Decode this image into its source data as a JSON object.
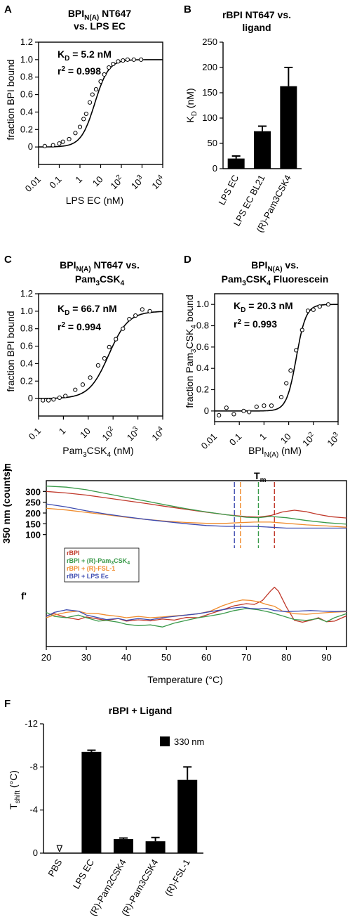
{
  "chart_data": [
    {
      "id": "A",
      "type": "scatter",
      "panel_label": "A",
      "title": "BPI_N(A) NT647 vs. LPS EC",
      "xlabel": "LPS EC (nM)",
      "ylabel": "fraction BPI bound",
      "xscale": "log",
      "xlim": [
        0.01,
        10000
      ],
      "ylim": [
        -0.2,
        1.2
      ],
      "xticklabels": [
        "0.01",
        "0.1",
        "1",
        "10",
        "10^2",
        "10^3",
        "10^4"
      ],
      "yticklabels": [
        "0",
        "0.2",
        "0.4",
        "0.6",
        "0.8",
        "1.0",
        "1.2"
      ],
      "annotations": [
        "K_D = 5.2 nM",
        "r^2 = 0.998"
      ],
      "fit": {
        "kd": 5.2,
        "hill": 1.3
      },
      "points": [
        [
          0.02,
          0.01
        ],
        [
          0.05,
          0.02
        ],
        [
          0.1,
          0.04
        ],
        [
          0.15,
          0.06
        ],
        [
          0.3,
          0.09
        ],
        [
          0.6,
          0.16
        ],
        [
          1,
          0.23
        ],
        [
          1.5,
          0.32
        ],
        [
          2,
          0.38
        ],
        [
          3,
          0.51
        ],
        [
          4,
          0.6
        ],
        [
          6,
          0.66
        ],
        [
          10,
          0.75
        ],
        [
          15,
          0.83
        ],
        [
          25,
          0.91
        ],
        [
          40,
          0.95
        ],
        [
          70,
          0.98
        ],
        [
          120,
          0.99
        ],
        [
          200,
          1.0
        ],
        [
          400,
          1.0
        ],
        [
          900,
          1.0
        ]
      ]
    },
    {
      "id": "B",
      "type": "bar",
      "panel_label": "B",
      "title": "rBPI NT647 vs. ligand",
      "ylabel": "K_D (nM)",
      "ylim": [
        0,
        250
      ],
      "yticklabels": [
        "0",
        "50",
        "100",
        "150",
        "200",
        "250"
      ],
      "categories": [
        "LPS EC",
        "LPS EC BL21",
        "(R)-Pam3CSK4"
      ],
      "values": [
        20,
        74,
        163
      ],
      "errors": [
        5,
        10,
        37
      ]
    },
    {
      "id": "C",
      "type": "scatter",
      "panel_label": "C",
      "title": "BPI_N(A) NT647 vs. Pam3CSK4",
      "xlabel": "Pam3CSK4 (nM)",
      "ylabel": "fraction BPI bound",
      "xscale": "log",
      "xlim": [
        0.1,
        10000
      ],
      "ylim": [
        -0.2,
        1.2
      ],
      "xticklabels": [
        "0.1",
        "1",
        "10",
        "10^2",
        "10^3",
        "10^4"
      ],
      "yticklabels": [
        "0",
        "0.2",
        "0.4",
        "0.6",
        "0.8",
        "1.0",
        "1.2"
      ],
      "annotations": [
        "K_D = 66.7 nM",
        "r^2 = 0.994"
      ],
      "fit": {
        "kd": 66.7,
        "hill": 1.1
      },
      "points": [
        [
          0.15,
          -0.02
        ],
        [
          0.25,
          -0.02
        ],
        [
          0.4,
          -0.01
        ],
        [
          0.7,
          0.01
        ],
        [
          1.2,
          0.03
        ],
        [
          3,
          0.1
        ],
        [
          6,
          0.16
        ],
        [
          12,
          0.24
        ],
        [
          25,
          0.38
        ],
        [
          45,
          0.46
        ],
        [
          70,
          0.59
        ],
        [
          130,
          0.68
        ],
        [
          250,
          0.8
        ],
        [
          450,
          0.91
        ],
        [
          800,
          0.95
        ],
        [
          1500,
          1.02
        ],
        [
          3000,
          1.0
        ]
      ]
    },
    {
      "id": "D",
      "type": "scatter",
      "panel_label": "D",
      "title": "BPI_N(A) vs. Pam3CSK4 Fluorescein",
      "xlabel": "BPI_N(A) (nM)",
      "ylabel": "fraction Pam3CSK4 bound",
      "xscale": "log",
      "xlim": [
        0.01,
        1000
      ],
      "ylim": [
        -0.1,
        1.1
      ],
      "xticklabels": [
        "0.01",
        "0.1",
        "1",
        "10",
        "10^2",
        "10^3"
      ],
      "yticklabels": [
        "0",
        "0.2",
        "0.4",
        "0.6",
        "0.8",
        "1.0"
      ],
      "annotations": [
        "K_D = 20.3 nM",
        "r^2 = 0.993"
      ],
      "fit": {
        "kd": 20.3,
        "hill": 2.2
      },
      "points": [
        [
          0.015,
          -0.04
        ],
        [
          0.03,
          0.03
        ],
        [
          0.06,
          -0.03
        ],
        [
          0.15,
          0.0
        ],
        [
          0.25,
          -0.01
        ],
        [
          0.5,
          0.04
        ],
        [
          1,
          0.05
        ],
        [
          2,
          0.05
        ],
        [
          5,
          0.13
        ],
        [
          8,
          0.26
        ],
        [
          12,
          0.38
        ],
        [
          20,
          0.57
        ],
        [
          35,
          0.76
        ],
        [
          60,
          0.94
        ],
        [
          100,
          0.95
        ],
        [
          180,
          0.98
        ],
        [
          400,
          1.0
        ]
      ]
    },
    {
      "id": "E",
      "type": "line",
      "panel_label": "E",
      "xlabel": "Temperature (°C)",
      "ylabel": "350 nm (counts)",
      "lower_ylabel": "f'",
      "tm_label": "Tm",
      "xlim": [
        20,
        95
      ],
      "ylim": [
        50,
        350
      ],
      "xticklabels": [
        "20",
        "30",
        "40",
        "50",
        "60",
        "70",
        "80",
        "90"
      ],
      "yticklabels": [
        "100",
        "150",
        "200",
        "250",
        "300"
      ],
      "tm_values": [
        67,
        68.5,
        73,
        77
      ],
      "series": [
        {
          "name": "rBPI",
          "color": "#c0392b",
          "x": [
            20,
            25,
            30,
            35,
            40,
            45,
            50,
            55,
            60,
            65,
            70,
            73,
            76,
            79,
            82,
            85,
            88,
            91,
            95
          ],
          "y": [
            300,
            293,
            283,
            270,
            257,
            244,
            230,
            217,
            204,
            192,
            183,
            181,
            188,
            205,
            213,
            206,
            193,
            183,
            177
          ]
        },
        {
          "name": "rBPI + (R)-Pam3CSK4",
          "color": "#3a9a4a",
          "x": [
            20,
            25,
            30,
            35,
            40,
            45,
            50,
            55,
            60,
            65,
            70,
            73,
            76,
            80,
            85,
            90,
            95
          ],
          "y": [
            325,
            320,
            308,
            290,
            272,
            255,
            237,
            220,
            205,
            192,
            180,
            178,
            184,
            178,
            165,
            155,
            148
          ]
        },
        {
          "name": "rBPI + (R)-FSL-1",
          "color": "#f08c2e",
          "x": [
            20,
            25,
            30,
            35,
            40,
            45,
            50,
            55,
            60,
            65,
            68,
            72,
            76,
            80,
            85,
            90,
            95
          ],
          "y": [
            222,
            214,
            203,
            192,
            180,
            170,
            162,
            156,
            152,
            152,
            155,
            158,
            158,
            152,
            145,
            140,
            134
          ]
        },
        {
          "name": "rBPI + LPS Ec",
          "color": "#3d4bb0",
          "x": [
            20,
            25,
            30,
            35,
            40,
            45,
            50,
            55,
            60,
            65,
            68,
            72,
            76,
            80,
            85,
            90,
            95
          ],
          "y": [
            242,
            228,
            210,
            195,
            182,
            170,
            160,
            150,
            142,
            138,
            138,
            138,
            134,
            130,
            130,
            130,
            130
          ]
        }
      ],
      "derivative_series": [
        {
          "name": "rBPI",
          "color": "#c0392b",
          "x": [
            20,
            22,
            25,
            28,
            30,
            33,
            35,
            38,
            40,
            43,
            46,
            49,
            52,
            55,
            58,
            61,
            64,
            67,
            70,
            72,
            74,
            76,
            77,
            78,
            80,
            82,
            84,
            86,
            88,
            90,
            92,
            95
          ],
          "y": [
            0.12,
            0.2,
            0.06,
            -0.02,
            0.08,
            0.0,
            -0.05,
            0.02,
            -0.08,
            -0.03,
            -0.07,
            0.0,
            -0.04,
            0.06,
            0.05,
            0.2,
            0.35,
            0.5,
            0.58,
            0.55,
            0.7,
            1.05,
            1.2,
            1.05,
            0.45,
            -0.05,
            -0.12,
            -0.05,
            0.05,
            -0.1,
            -0.08,
            0.12
          ]
        },
        {
          "name": "rBPI + (R)-Pam3CSK4",
          "color": "#3a9a4a",
          "x": [
            20,
            22,
            25,
            28,
            30,
            33,
            35,
            38,
            40,
            43,
            46,
            49,
            52,
            55,
            58,
            61,
            64,
            67,
            70,
            73,
            76,
            79,
            82,
            85,
            88,
            90,
            92,
            95
          ],
          "y": [
            0.25,
            0.1,
            0.05,
            0.15,
            0.05,
            -0.08,
            -0.05,
            -0.12,
            -0.2,
            -0.25,
            -0.22,
            -0.3,
            -0.15,
            -0.05,
            0.05,
            0.12,
            0.2,
            0.32,
            0.4,
            0.35,
            0.25,
            0.12,
            -0.02,
            -0.05,
            0.02,
            -0.1,
            0.05,
            0.2
          ]
        },
        {
          "name": "rBPI + (R)-FSL-1",
          "color": "#f08c2e",
          "x": [
            20,
            22,
            25,
            28,
            30,
            33,
            35,
            38,
            40,
            43,
            46,
            49,
            52,
            55,
            58,
            61,
            64,
            67,
            69,
            71,
            73,
            75,
            77,
            79,
            82,
            85,
            88,
            91,
            95
          ],
          "y": [
            0.05,
            0.15,
            0.25,
            0.3,
            0.22,
            0.2,
            0.15,
            0.1,
            0.05,
            0.1,
            0.05,
            0.08,
            0.12,
            0.15,
            0.2,
            0.3,
            0.5,
            0.65,
            0.72,
            0.7,
            0.65,
            0.55,
            0.48,
            0.3,
            0.2,
            0.18,
            0.22,
            0.25,
            0.28
          ]
        },
        {
          "name": "rBPI + LPS Ec",
          "color": "#3d4bb0",
          "x": [
            20,
            22,
            25,
            28,
            30,
            33,
            35,
            38,
            40,
            43,
            46,
            49,
            52,
            55,
            58,
            61,
            64,
            67,
            69,
            71,
            73,
            75,
            77,
            80,
            83,
            86,
            89,
            92,
            95
          ],
          "y": [
            0.1,
            0.25,
            0.35,
            0.3,
            0.15,
            0.05,
            -0.02,
            0.02,
            -0.05,
            0.02,
            -0.03,
            0.05,
            0.1,
            0.15,
            0.2,
            0.28,
            0.35,
            0.42,
            0.45,
            0.4,
            0.38,
            0.4,
            0.32,
            0.28,
            0.3,
            0.32,
            0.3,
            0.28,
            0.3
          ]
        }
      ]
    },
    {
      "id": "F",
      "type": "bar",
      "panel_label": "F",
      "title": "rBPI + Ligand",
      "ylabel": "T_shift (°C)",
      "ylim": [
        0,
        -12
      ],
      "inverted_y": true,
      "yticklabels": [
        "-12",
        "-8",
        "-4",
        "0"
      ],
      "legend": "330 nm",
      "legend_position": "top-right",
      "categories": [
        "PBS",
        "LPS EC",
        "(R)-Pam2CSK4",
        "(R)-Pam3CSK4",
        "(R)-FSL-1"
      ],
      "values": [
        0,
        -9.4,
        -1.3,
        -1.1,
        -6.8
      ],
      "errors": [
        0,
        0.15,
        0.1,
        0.35,
        1.2
      ],
      "pbs_marker": "∇"
    }
  ]
}
